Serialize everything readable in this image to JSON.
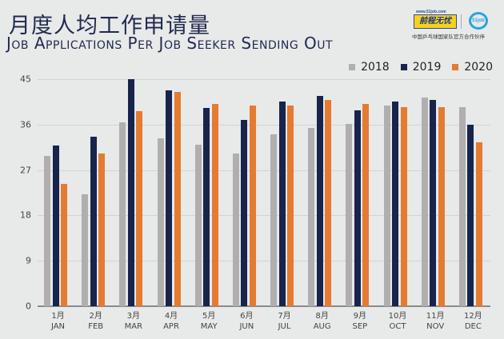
{
  "header": {
    "title_cn": "月度人均工作申请量",
    "title_en": "Job Applications Per Job Seeker Sending Out"
  },
  "logo": {
    "url_text": "www.51job.com",
    "brand": "前程无忧",
    "badge": "51job",
    "subtitle": "中国乒乓球国家队官方合作伙伴"
  },
  "colors": {
    "2018": "#b0aeae",
    "2019": "#16244e",
    "2020": "#e57b31",
    "background": "#e8e9e9"
  },
  "chart_data": {
    "type": "bar",
    "title": "月度人均工作申请量 / Job Applications Per Job Seeker Sending Out",
    "xlabel": "",
    "ylabel": "",
    "ylim": [
      0,
      45
    ],
    "yticks": [
      0,
      9,
      18,
      27,
      36,
      45
    ],
    "grid": true,
    "legend_position": "top-right",
    "categories": [
      "1月 JAN",
      "2月 FEB",
      "3月 MAR",
      "4月 APR",
      "5月 MAY",
      "6月 JUN",
      "7月 JUL",
      "8月 AUG",
      "9月 SEP",
      "10月 OCT",
      "11月 NOV",
      "12月 DEC"
    ],
    "categories_cn": [
      "1月",
      "2月",
      "3月",
      "4月",
      "5月",
      "6月",
      "7月",
      "8月",
      "9月",
      "10月",
      "11月",
      "12月"
    ],
    "categories_en": [
      "JAN",
      "FEB",
      "MAR",
      "APR",
      "MAY",
      "JUN",
      "JUL",
      "AUG",
      "SEP",
      "OCT",
      "NOV",
      "DEC"
    ],
    "series": [
      {
        "name": "2018",
        "values": [
          29.8,
          22.2,
          36.5,
          33.3,
          32.0,
          30.3,
          34.1,
          35.3,
          36.2,
          39.8,
          41.3,
          39.4
        ]
      },
      {
        "name": "2019",
        "values": [
          31.8,
          33.6,
          45.0,
          42.8,
          39.3,
          36.9,
          40.5,
          41.7,
          38.9,
          40.5,
          40.9,
          36.0
        ]
      },
      {
        "name": "2020",
        "values": [
          24.3,
          30.2,
          38.6,
          42.4,
          40.1,
          39.8,
          39.8,
          40.9,
          40.1,
          39.4,
          39.4,
          32.5
        ]
      }
    ]
  },
  "legend": [
    {
      "label": "2018"
    },
    {
      "label": "2019"
    },
    {
      "label": "2020"
    }
  ],
  "yaxis": {
    "ticks": [
      "0",
      "9",
      "18",
      "27",
      "36",
      "45"
    ]
  }
}
